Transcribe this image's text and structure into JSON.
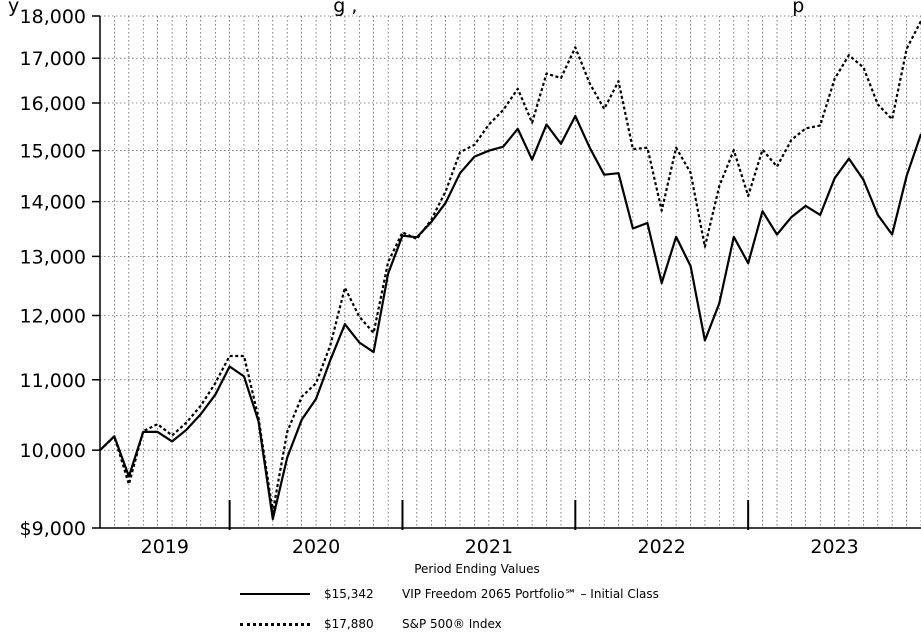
{
  "chart_data": {
    "type": "line",
    "title_fragment": "y                                                    g ,                                                                        p",
    "xlabel": "Period Ending Values",
    "x_tick_labels": [
      "2019",
      "2020",
      "2021",
      "2022",
      "2023"
    ],
    "y_tick_labels": [
      "$9,000",
      "10,000",
      "11,000",
      "12,000",
      "13,000",
      "14,000",
      "15,000",
      "16,000",
      "17,000",
      "18,000"
    ],
    "y_tick_values": [
      9000,
      10000,
      11000,
      12000,
      13000,
      14000,
      15000,
      16000,
      17000,
      18000
    ],
    "ylim": [
      9000,
      18000
    ],
    "yscale": "log",
    "xlim": [
      2018.75,
      2023.5
    ],
    "grid": true,
    "year_marks": [
      2019.5,
      2020.5,
      2021.5,
      2022.5
    ],
    "x": [
      2018.75,
      2018.833,
      2018.917,
      2019.0,
      2019.083,
      2019.167,
      2019.25,
      2019.333,
      2019.417,
      2019.5,
      2019.583,
      2019.667,
      2019.75,
      2019.833,
      2019.917,
      2020.0,
      2020.083,
      2020.167,
      2020.25,
      2020.333,
      2020.417,
      2020.5,
      2020.583,
      2020.667,
      2020.75,
      2020.833,
      2020.917,
      2021.0,
      2021.083,
      2021.167,
      2021.25,
      2021.333,
      2021.417,
      2021.5,
      2021.583,
      2021.667,
      2021.75,
      2021.833,
      2021.917,
      2022.0,
      2022.083,
      2022.167,
      2022.25,
      2022.333,
      2022.417,
      2022.5,
      2022.583,
      2022.667,
      2022.75,
      2022.833,
      2022.917,
      2023.0,
      2023.083,
      2023.167,
      2023.25,
      2023.333,
      2023.417,
      2023.5
    ],
    "series": [
      {
        "name": "VIP Freedom 2065 Portfolio℠ – Initial Class",
        "legend_value": "$15,342",
        "style": "solid",
        "values": [
          10000,
          10190,
          9650,
          10250,
          10250,
          10120,
          10280,
          10500,
          10780,
          11200,
          11050,
          10400,
          9110,
          9900,
          10420,
          10720,
          11300,
          11860,
          11570,
          11420,
          12700,
          13370,
          13340,
          13620,
          13980,
          14550,
          14880,
          15000,
          15080,
          15450,
          14820,
          15540,
          15140,
          15720,
          15060,
          14520,
          14550,
          13500,
          13600,
          12540,
          13350,
          12830,
          11600,
          12200,
          13350,
          12880,
          13820,
          13390,
          13710,
          13920,
          13750,
          14450,
          14840,
          14420,
          13750,
          13390,
          14500,
          15342
        ]
      },
      {
        "name": "S&P 500® Index",
        "legend_value": "$17,880",
        "style": "dotted",
        "values": [
          10000,
          10190,
          9550,
          10260,
          10360,
          10200,
          10380,
          10620,
          10950,
          11360,
          11360,
          10450,
          9200,
          10250,
          10750,
          10950,
          11530,
          12460,
          11980,
          11720,
          12900,
          13430,
          13310,
          13660,
          14200,
          14970,
          15120,
          15540,
          15850,
          16310,
          15580,
          16650,
          16550,
          17250,
          16430,
          15870,
          16480,
          15030,
          15060,
          13830,
          15060,
          14560,
          13170,
          14300,
          15010,
          14110,
          15020,
          14680,
          15220,
          15460,
          15520,
          16530,
          17070,
          16790,
          15970,
          15650,
          17220,
          17880
        ]
      }
    ]
  }
}
